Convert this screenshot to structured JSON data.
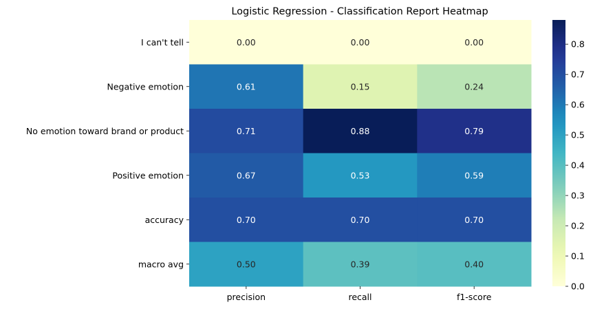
{
  "chart_data": {
    "type": "heatmap",
    "title": "Logistic Regression - Classification Report Heatmap",
    "xlabel": "",
    "ylabel": "",
    "columns": [
      "precision",
      "recall",
      "f1-score"
    ],
    "rows": [
      "I can't tell",
      "Negative emotion",
      "No emotion toward brand or product",
      "Positive emotion",
      "accuracy",
      "macro avg"
    ],
    "values": [
      [
        0.0,
        0.0,
        0.0
      ],
      [
        0.61,
        0.15,
        0.24
      ],
      [
        0.71,
        0.88,
        0.79
      ],
      [
        0.67,
        0.53,
        0.59
      ],
      [
        0.7,
        0.7,
        0.7
      ],
      [
        0.5,
        0.39,
        0.4
      ]
    ],
    "value_format": "0.00",
    "colormap": "YlGnBu",
    "colorbar": {
      "range": [
        0.0,
        0.88
      ],
      "ticks": [
        "0.0",
        "0.1",
        "0.2",
        "0.3",
        "0.4",
        "0.5",
        "0.6",
        "0.7",
        "0.8"
      ]
    }
  }
}
